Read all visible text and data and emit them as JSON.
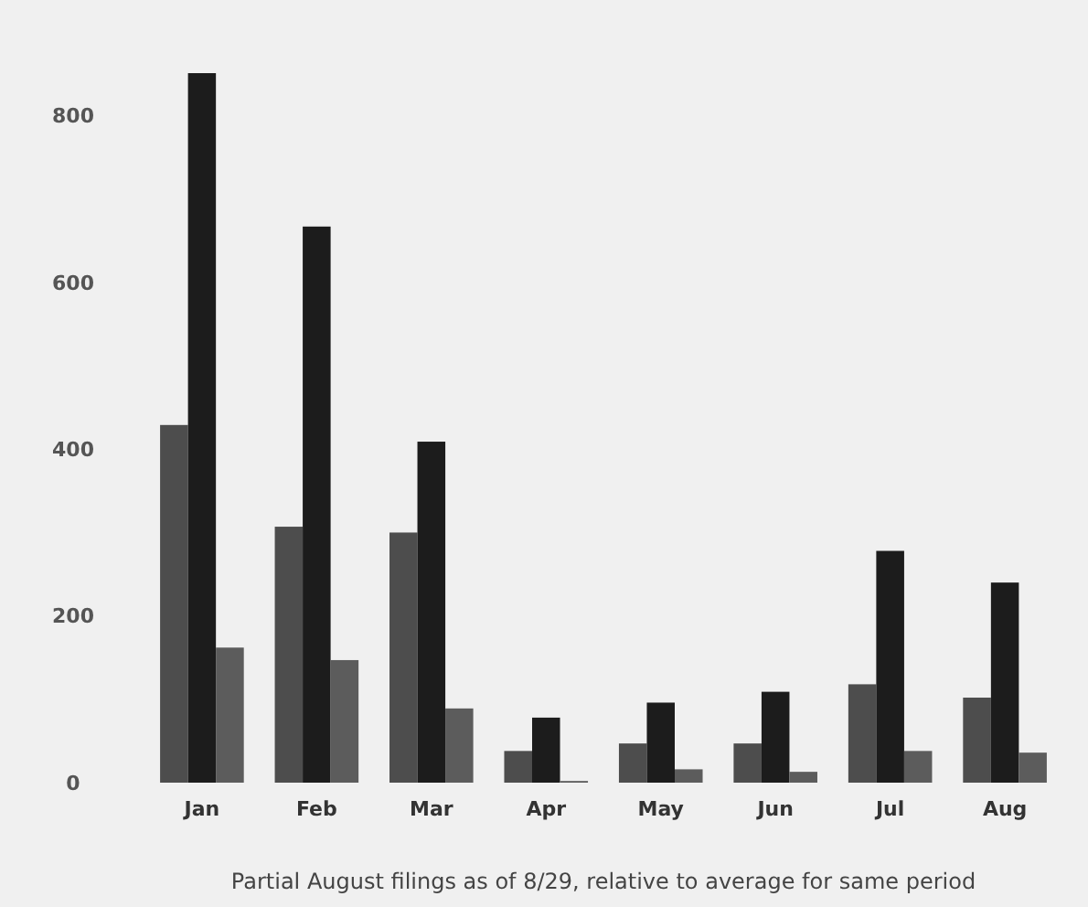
{
  "chart_data": {
    "type": "bar",
    "categories": [
      "Jan",
      "Feb",
      "Mar",
      "Apr",
      "May",
      "Jun",
      "Jul",
      "Aug"
    ],
    "series": [
      {
        "color": "#4d4d4d",
        "values": [
          429,
          307,
          300,
          38,
          47,
          47,
          118,
          102
        ]
      },
      {
        "color": "#1c1c1c",
        "values": [
          851,
          667,
          409,
          78,
          96,
          109,
          278,
          240
        ]
      },
      {
        "color": "#5c5c5c",
        "values": [
          162,
          147,
          89,
          2,
          16,
          13,
          38,
          36
        ]
      }
    ],
    "ylim": [
      0,
      851
    ],
    "yticks": [
      0,
      200,
      400,
      600,
      800
    ],
    "grid": false,
    "annotations": [
      "Partial August filings as of 8/29, relative to average for same period"
    ]
  }
}
